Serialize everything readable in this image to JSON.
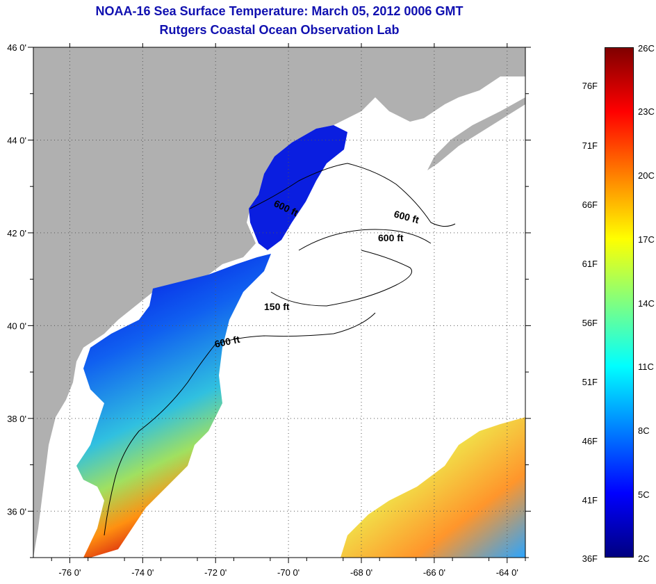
{
  "header": {
    "title_line1": "NOAA-16 Sea Surface Temperature:  March 05, 2012 0006 GMT",
    "title_line2": "Rutgers Coastal Ocean Observation Lab"
  },
  "map": {
    "lon_ticks": [
      "-76 0'",
      "-74 0'",
      "-72 0'",
      "-70 0'",
      "-68 0'",
      "-66 0'",
      "-64 0'"
    ],
    "lat_ticks": [
      "36 0'",
      "38 0'",
      "40 0'",
      "42 0'",
      "44 0'",
      "46 0'"
    ],
    "contour_labels": [
      "600 ft",
      "600 ft",
      "600 ft",
      "150 ft",
      "600 ft"
    ],
    "land_color": "#b0b0b0",
    "water_color": "#ffffff"
  },
  "colorbar": {
    "fahrenheit_labels": [
      "76F",
      "71F",
      "66F",
      "61F",
      "56F",
      "51F",
      "46F",
      "41F",
      "36F"
    ],
    "celsius_labels": [
      "26C",
      "23C",
      "20C",
      "17C",
      "14C",
      "11C",
      "8C",
      "5C",
      "2C"
    ],
    "colors": [
      "#800000",
      "#ff0000",
      "#ff8000",
      "#ffff00",
      "#80ff80",
      "#00ffff",
      "#0080ff",
      "#0000ff",
      "#000080"
    ]
  }
}
